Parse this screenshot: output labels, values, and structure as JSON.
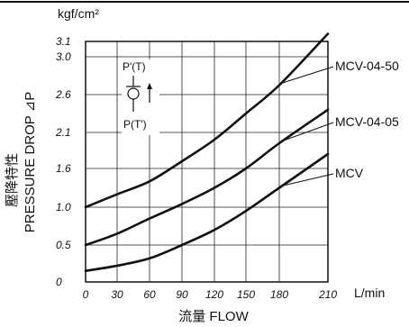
{
  "chart_data": {
    "type": "line",
    "title": "",
    "y_unit": "kgf/cm²",
    "x_unit": "L/min",
    "ylabel_cjk": "壓降特性",
    "ylabel": "PRESSURE DROP ⊿P",
    "xlabel": "流量 FLOW",
    "x_ticks": [
      "0",
      "30",
      "60",
      "90",
      "120",
      "150",
      "180",
      "210"
    ],
    "y_ticks": [
      "0",
      "0.5",
      "1.0",
      "1.6",
      "2.1",
      "2.6",
      "3.0",
      "3.1"
    ],
    "y_tick_values": [
      0,
      0.5,
      1.0,
      1.6,
      2.1,
      2.6,
      3.0,
      3.1
    ],
    "xlim": [
      0,
      210
    ],
    "ylim": [
      0,
      3.1
    ],
    "grid": true,
    "inset": {
      "top_label": "P'(T)",
      "bottom_label": "P(T')"
    },
    "series": [
      {
        "name": "MCV-04-50",
        "x": [
          0,
          30,
          60,
          90,
          120,
          150,
          180,
          210
        ],
        "y": [
          1.0,
          1.2,
          1.4,
          1.7,
          2.0,
          2.35,
          2.7,
          3.15
        ]
      },
      {
        "name": "MCV-04-05",
        "x": [
          0,
          30,
          60,
          90,
          120,
          150,
          180,
          210
        ],
        "y": [
          0.5,
          0.65,
          0.85,
          1.05,
          1.3,
          1.6,
          1.95,
          2.4
        ]
      },
      {
        "name": "MCV",
        "x": [
          0,
          30,
          60,
          90,
          120,
          150,
          180,
          210
        ],
        "y": [
          0.15,
          0.22,
          0.32,
          0.5,
          0.7,
          0.95,
          1.3,
          1.8
        ]
      }
    ]
  }
}
